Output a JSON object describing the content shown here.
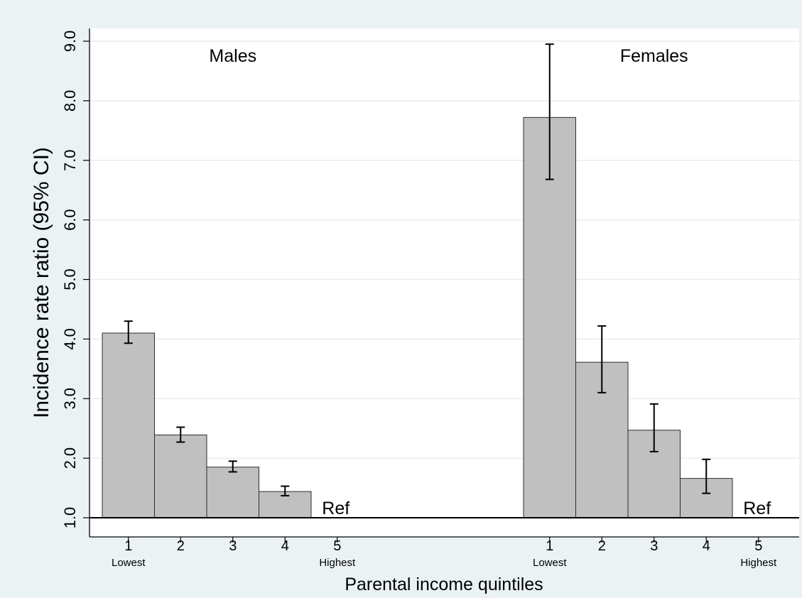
{
  "chart_data": {
    "type": "bar",
    "title": "",
    "xlabel": "Parental income quintiles",
    "ylabel": "Incidence rate ratio (95% CI)",
    "ylim": [
      1.0,
      9.0
    ],
    "yticks": [
      "1.0",
      "2.0",
      "3.0",
      "4.0",
      "5.0",
      "6.0",
      "7.0",
      "8.0",
      "9.0"
    ],
    "grid": true,
    "reference_line": 1.0,
    "categories": [
      "1",
      "2",
      "3",
      "4",
      "5"
    ],
    "category_sublabels": {
      "1": "Lowest",
      "5": "Highest"
    },
    "reference_category_label": "Ref",
    "groups": [
      {
        "name": "Males",
        "values": [
          4.1,
          2.39,
          1.85,
          1.44,
          1.0
        ],
        "ci_low": [
          3.93,
          2.27,
          1.77,
          1.37,
          null
        ],
        "ci_high": [
          4.3,
          2.52,
          1.95,
          1.53,
          null
        ],
        "reference_index": 4
      },
      {
        "name": "Females",
        "values": [
          7.72,
          3.61,
          2.47,
          1.66,
          1.0
        ],
        "ci_low": [
          6.68,
          3.1,
          2.11,
          1.41,
          null
        ],
        "ci_high": [
          8.95,
          4.22,
          2.91,
          1.98,
          null
        ],
        "reference_index": 4
      }
    ],
    "colors": {
      "bar": "#c0c0c0",
      "bar_stroke": "#2b2b2b",
      "plot_bg": "#ffffff",
      "outer_bg": "#eaf2f3",
      "grid": "#e6eef0"
    }
  }
}
